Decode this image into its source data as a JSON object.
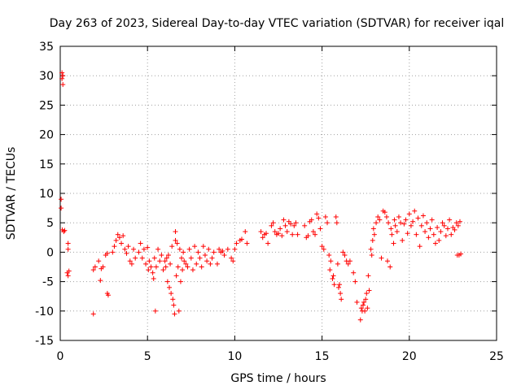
{
  "chart_data": {
    "type": "scatter",
    "title": "Day 263 of 2023, Sidereal Day-to-day VTEC variation (SDTVAR) for receiver iqal",
    "xlabel": "GPS time / hours",
    "ylabel": "SDTVAR / TECUs",
    "xlim": [
      0,
      25
    ],
    "ylim": [
      -15,
      35
    ],
    "xticks": [
      0,
      5,
      10,
      15,
      20,
      25
    ],
    "yticks": [
      -15,
      -10,
      -5,
      0,
      5,
      10,
      15,
      20,
      25,
      30,
      35
    ],
    "xtick_labels": [
      "0",
      "5",
      "10",
      "15",
      "20",
      "25"
    ],
    "ytick_labels": [
      "-15",
      "-10",
      "-5",
      "0",
      "5",
      "10",
      "15",
      "20",
      "25",
      "30",
      "35"
    ],
    "grid": true,
    "marker": "+",
    "color": "#ff0000",
    "series": [
      {
        "name": "SDTVAR",
        "points": [
          [
            0.05,
            9
          ],
          [
            0.05,
            7.5
          ],
          [
            0.1,
            30.5
          ],
          [
            0.1,
            29.5
          ],
          [
            0.15,
            28.5
          ],
          [
            0.15,
            30
          ],
          [
            0.12,
            3.8
          ],
          [
            0.2,
            3.5
          ],
          [
            0.25,
            3.7
          ],
          [
            0.45,
            1.5
          ],
          [
            0.45,
            0.5
          ],
          [
            0.4,
            -3.5
          ],
          [
            0.45,
            -4
          ],
          [
            0.5,
            -3.2
          ],
          [
            1.9,
            -10.5
          ],
          [
            1.9,
            -3
          ],
          [
            2.0,
            -2.5
          ],
          [
            2.2,
            -1.5
          ],
          [
            2.3,
            -4.8
          ],
          [
            2.35,
            -2.8
          ],
          [
            2.45,
            -2.5
          ],
          [
            2.6,
            -0.5
          ],
          [
            2.7,
            -0.2
          ],
          [
            2.7,
            -7
          ],
          [
            2.75,
            -7.3
          ],
          [
            3.0,
            0
          ],
          [
            3.1,
            1
          ],
          [
            3.2,
            2
          ],
          [
            3.3,
            3
          ],
          [
            3.4,
            2.5
          ],
          [
            3.5,
            1.5
          ],
          [
            3.6,
            2.8
          ],
          [
            3.7,
            0.5
          ],
          [
            3.8,
            -0.2
          ],
          [
            3.9,
            1
          ],
          [
            4.0,
            -1.5
          ],
          [
            4.1,
            -2
          ],
          [
            4.2,
            0.5
          ],
          [
            4.3,
            -1
          ],
          [
            4.5,
            0
          ],
          [
            4.6,
            1.5
          ],
          [
            4.7,
            -1
          ],
          [
            4.8,
            0.5
          ],
          [
            4.9,
            -2
          ],
          [
            5.0,
            0.8
          ],
          [
            5.05,
            -3
          ],
          [
            5.1,
            -1.5
          ],
          [
            5.2,
            -2.5
          ],
          [
            5.3,
            -3.5
          ],
          [
            5.35,
            -4.5
          ],
          [
            5.4,
            -1
          ],
          [
            5.45,
            -10
          ],
          [
            5.5,
            -2.5
          ],
          [
            5.6,
            0.5
          ],
          [
            5.7,
            -1.5
          ],
          [
            5.8,
            -0.5
          ],
          [
            5.9,
            -3
          ],
          [
            6.0,
            -1.5
          ],
          [
            6.05,
            -2.5
          ],
          [
            6.1,
            -1
          ],
          [
            6.15,
            -5
          ],
          [
            6.2,
            -0.5
          ],
          [
            6.25,
            -6
          ],
          [
            6.3,
            -2
          ],
          [
            6.35,
            -7
          ],
          [
            6.4,
            1
          ],
          [
            6.45,
            -8
          ],
          [
            6.5,
            -9
          ],
          [
            6.55,
            -10.5
          ],
          [
            6.6,
            3.5
          ],
          [
            6.6,
            2
          ],
          [
            6.65,
            -4
          ],
          [
            6.7,
            1.5
          ],
          [
            6.75,
            -2.5
          ],
          [
            6.8,
            -10
          ],
          [
            6.85,
            0.5
          ],
          [
            6.9,
            -5
          ],
          [
            6.95,
            -1
          ],
          [
            7.0,
            -3
          ],
          [
            7.05,
            0
          ],
          [
            7.1,
            -1.5
          ],
          [
            7.2,
            -2
          ],
          [
            7.3,
            -2.5
          ],
          [
            7.4,
            0.5
          ],
          [
            7.5,
            -1
          ],
          [
            7.6,
            -3
          ],
          [
            7.7,
            1
          ],
          [
            7.8,
            -2
          ],
          [
            7.9,
            0
          ],
          [
            8.0,
            -1
          ],
          [
            8.1,
            -2.5
          ],
          [
            8.2,
            1
          ],
          [
            8.3,
            -0.5
          ],
          [
            8.4,
            -1.5
          ],
          [
            8.5,
            0.5
          ],
          [
            8.6,
            -2
          ],
          [
            8.7,
            -1
          ],
          [
            8.8,
            0
          ],
          [
            9.0,
            -2
          ],
          [
            9.1,
            0.5
          ],
          [
            9.2,
            0
          ],
          [
            9.3,
            0.2
          ],
          [
            9.4,
            -0.5
          ],
          [
            9.6,
            0.5
          ],
          [
            9.8,
            -1
          ],
          [
            9.9,
            -1.5
          ],
          [
            10.0,
            0.5
          ],
          [
            10.1,
            1.5
          ],
          [
            10.3,
            2
          ],
          [
            10.4,
            2.2
          ],
          [
            10.6,
            3.5
          ],
          [
            10.7,
            1.5
          ],
          [
            11.5,
            3.5
          ],
          [
            11.6,
            2.5
          ],
          [
            11.7,
            3
          ],
          [
            11.8,
            3.2
          ],
          [
            11.9,
            1.5
          ],
          [
            12.1,
            4.5
          ],
          [
            12.2,
            5
          ],
          [
            12.3,
            3.5
          ],
          [
            12.4,
            3
          ],
          [
            12.5,
            3.2
          ],
          [
            12.6,
            4
          ],
          [
            12.7,
            2.8
          ],
          [
            12.8,
            5.5
          ],
          [
            12.9,
            4.5
          ],
          [
            13.0,
            3.5
          ],
          [
            13.1,
            5.2
          ],
          [
            13.2,
            4.8
          ],
          [
            13.3,
            3
          ],
          [
            13.4,
            4.5
          ],
          [
            13.5,
            5
          ],
          [
            13.6,
            3
          ],
          [
            14.0,
            4.5
          ],
          [
            14.1,
            2.5
          ],
          [
            14.2,
            2.8
          ],
          [
            14.3,
            5.2
          ],
          [
            14.4,
            5.5
          ],
          [
            14.5,
            3.5
          ],
          [
            14.6,
            3
          ],
          [
            14.7,
            6.5
          ],
          [
            14.8,
            5.8
          ],
          [
            14.9,
            4
          ],
          [
            15.0,
            1
          ],
          [
            15.1,
            0.5
          ],
          [
            15.2,
            6
          ],
          [
            15.3,
            5
          ],
          [
            15.4,
            -0.5
          ],
          [
            15.45,
            -3
          ],
          [
            15.5,
            -1.5
          ],
          [
            15.6,
            -4.5
          ],
          [
            15.65,
            -4
          ],
          [
            15.7,
            -5.5
          ],
          [
            15.8,
            6
          ],
          [
            15.85,
            5
          ],
          [
            15.9,
            -2
          ],
          [
            15.95,
            -6
          ],
          [
            16.0,
            -5.5
          ],
          [
            16.05,
            -7
          ],
          [
            16.1,
            -8
          ],
          [
            16.2,
            0
          ],
          [
            16.3,
            -0.5
          ],
          [
            16.4,
            -1.5
          ],
          [
            16.5,
            -2
          ],
          [
            16.6,
            -1.5
          ],
          [
            16.8,
            -3.5
          ],
          [
            16.9,
            -5
          ],
          [
            17.0,
            -8.5
          ],
          [
            17.2,
            -11.5
          ],
          [
            17.25,
            -9.5
          ],
          [
            17.3,
            -10
          ],
          [
            17.35,
            -9
          ],
          [
            17.4,
            -8.5
          ],
          [
            17.45,
            -10
          ],
          [
            17.5,
            -8
          ],
          [
            17.55,
            -7
          ],
          [
            17.6,
            -9.5
          ],
          [
            17.65,
            -4
          ],
          [
            17.7,
            -6.5
          ],
          [
            17.8,
            0.5
          ],
          [
            17.85,
            -0.5
          ],
          [
            17.9,
            2
          ],
          [
            17.95,
            4
          ],
          [
            18.0,
            3
          ],
          [
            18.1,
            5
          ],
          [
            18.2,
            6
          ],
          [
            18.3,
            5.5
          ],
          [
            18.4,
            -1
          ],
          [
            18.5,
            7
          ],
          [
            18.6,
            6.8
          ],
          [
            18.7,
            6
          ],
          [
            18.75,
            -1.5
          ],
          [
            18.8,
            5
          ],
          [
            18.9,
            -2.5
          ],
          [
            18.95,
            4
          ],
          [
            19.0,
            3
          ],
          [
            19.1,
            1.5
          ],
          [
            19.15,
            5.5
          ],
          [
            19.2,
            4.5
          ],
          [
            19.3,
            3.5
          ],
          [
            19.4,
            6
          ],
          [
            19.5,
            5
          ],
          [
            19.6,
            2
          ],
          [
            19.7,
            4.8
          ],
          [
            19.8,
            5.5
          ],
          [
            19.9,
            3.2
          ],
          [
            20.0,
            6.5
          ],
          [
            20.1,
            4.5
          ],
          [
            20.2,
            5.2
          ],
          [
            20.3,
            7
          ],
          [
            20.4,
            3
          ],
          [
            20.5,
            5.8
          ],
          [
            20.6,
            1
          ],
          [
            20.7,
            4.5
          ],
          [
            20.8,
            6.2
          ],
          [
            20.9,
            3.5
          ],
          [
            21.0,
            5
          ],
          [
            21.1,
            2.5
          ],
          [
            21.2,
            4
          ],
          [
            21.3,
            5.5
          ],
          [
            21.4,
            3
          ],
          [
            21.5,
            1.5
          ],
          [
            21.6,
            4.2
          ],
          [
            21.7,
            2
          ],
          [
            21.8,
            3.5
          ],
          [
            21.9,
            5
          ],
          [
            22.0,
            4.5
          ],
          [
            22.1,
            2.8
          ],
          [
            22.2,
            4
          ],
          [
            22.3,
            5.5
          ],
          [
            22.4,
            3
          ],
          [
            22.5,
            4.2
          ],
          [
            22.6,
            3.8
          ],
          [
            22.7,
            5
          ],
          [
            22.75,
            -0.5
          ],
          [
            22.8,
            4.5
          ],
          [
            22.85,
            -0.5
          ],
          [
            22.9,
            5.2
          ],
          [
            22.95,
            -0.3
          ]
        ]
      }
    ]
  }
}
